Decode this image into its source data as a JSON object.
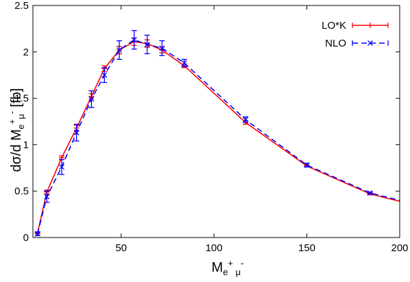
{
  "chart_data": {
    "type": "line",
    "x": [
      5,
      10,
      18,
      26,
      34,
      41,
      49,
      57,
      64,
      72,
      84,
      117,
      150,
      184,
      200
    ],
    "series": [
      {
        "name": "LO*K",
        "color": "#ff0000",
        "style": "solid",
        "marker": "errorbar",
        "values": [
          0.05,
          0.49,
          0.86,
          1.18,
          1.52,
          1.82,
          2.02,
          2.11,
          2.09,
          2.02,
          1.85,
          1.24,
          0.77,
          0.47,
          0.39
        ],
        "errors": [
          0.01,
          0.02,
          0.02,
          0.03,
          0.03,
          0.03,
          0.04,
          0.04,
          0.04,
          0.03,
          0.02,
          0.02,
          0.01,
          0.01,
          null
        ]
      },
      {
        "name": "NLO",
        "color": "#0000ff",
        "style": "dashed",
        "marker": "x-errorbar",
        "values": [
          0.04,
          0.44,
          0.76,
          1.13,
          1.49,
          1.75,
          2.02,
          2.13,
          2.08,
          2.04,
          1.88,
          1.27,
          0.78,
          0.48,
          0.4
        ],
        "errors": [
          0.02,
          0.06,
          0.08,
          0.09,
          0.09,
          0.08,
          0.1,
          0.1,
          0.1,
          0.08,
          0.04,
          0.03,
          0.02,
          0.01,
          null
        ]
      }
    ],
    "xlim": [
      2.5,
      200
    ],
    "ylim": [
      0,
      2.5
    ],
    "xticks": [
      50,
      100,
      150,
      200
    ],
    "yticks": [
      0,
      0.5,
      1,
      1.5,
      2,
      2.5
    ],
    "ytick_labels": [
      "0",
      "0.5",
      "1",
      "1.5",
      "2",
      "2.5"
    ],
    "ylabel": {
      "prefix": "dσ/d M",
      "sub_a": "e",
      "sup_a": "+",
      "sub_b": "μ",
      "sup_b": "-",
      "suffix": " [fb]"
    },
    "xlabel": {
      "prefix": "M",
      "sub_a": "e",
      "sup_a": "+",
      "sub_b": " μ",
      "sup_b": "-"
    },
    "legend": {
      "position": "top-right",
      "entries": [
        "LO*K",
        "NLO"
      ]
    },
    "grid": false
  }
}
